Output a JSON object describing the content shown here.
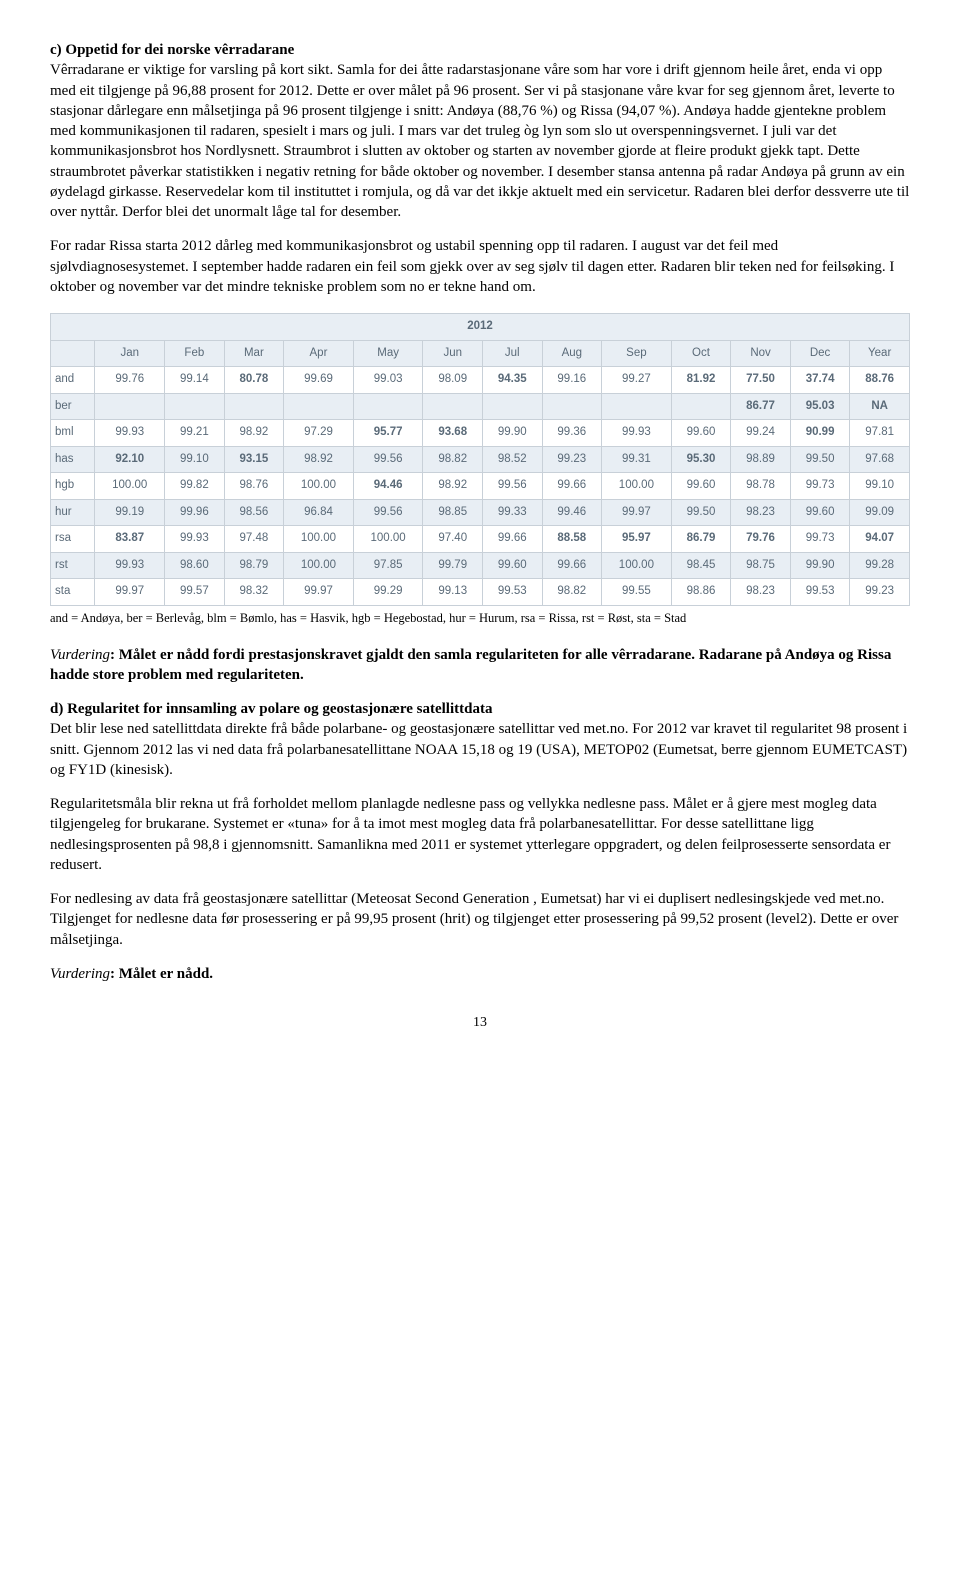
{
  "sectionC": {
    "title": "c) Oppetid for dei norske vêrradarane",
    "para1": "Vêrradarane er viktige for varsling på kort sikt. Samla for dei åtte radarstasjonane våre som har vore i drift gjennom heile året, enda vi opp med eit tilgjenge på 96,88 prosent for 2012. Dette er over målet på 96 prosent. Ser vi på stasjonane våre kvar for seg gjennom året, leverte to stasjonar dårlegare enn målsetjinga på 96 prosent tilgjenge i snitt: Andøya (88,76 %) og Rissa (94,07 %). Andøya hadde gjentekne problem med kommunikasjonen til radaren, spesielt i mars og juli. I mars var det truleg òg lyn som slo ut overspenningsvernet. I juli var det kommunikasjonsbrot hos Nordlysnett. Straumbrot i slutten av oktober og starten av november gjorde at fleire produkt gjekk tapt. Dette straumbrotet påverkar statistikken i negativ retning for både oktober og november. I desember stansa antenna på radar Andøya på grunn av ein øydelagd girkasse. Reservedelar kom til instituttet i romjula, og då var det ikkje aktuelt med ein servicetur. Radaren blei derfor dessverre ute til over nyttår. Derfor blei det unormalt låge tal for desember.",
    "para2": "For radar Rissa starta 2012 dårleg med kommunikasjonsbrot og ustabil spenning opp til radaren. I august var det feil med sjølvdiagnosesystemet. I september hadde radaren ein feil som gjekk over av seg sjølv til dagen etter. Radaren blir teken ned for feilsøking. I oktober og november var det mindre tekniske problem som no er tekne hand om."
  },
  "table": {
    "yearHeader": "2012",
    "columns": [
      "",
      "Jan",
      "Feb",
      "Mar",
      "Apr",
      "May",
      "Jun",
      "Jul",
      "Aug",
      "Sep",
      "Oct",
      "Nov",
      "Dec",
      "Year"
    ],
    "rows": [
      {
        "label": "and",
        "shade": false,
        "cells": [
          {
            "v": "99.76"
          },
          {
            "v": "99.14"
          },
          {
            "v": "80.78",
            "b": true
          },
          {
            "v": "99.69"
          },
          {
            "v": "99.03"
          },
          {
            "v": "98.09"
          },
          {
            "v": "94.35",
            "b": true
          },
          {
            "v": "99.16"
          },
          {
            "v": "99.27"
          },
          {
            "v": "81.92",
            "b": true
          },
          {
            "v": "77.50",
            "b": true
          },
          {
            "v": "37.74",
            "b": true
          },
          {
            "v": "88.76",
            "b": true
          }
        ]
      },
      {
        "label": "ber",
        "shade": true,
        "cells": [
          {
            "v": ""
          },
          {
            "v": ""
          },
          {
            "v": ""
          },
          {
            "v": ""
          },
          {
            "v": ""
          },
          {
            "v": ""
          },
          {
            "v": ""
          },
          {
            "v": ""
          },
          {
            "v": ""
          },
          {
            "v": ""
          },
          {
            "v": "86.77",
            "b": true
          },
          {
            "v": "95.03",
            "b": true
          },
          {
            "v": "NA",
            "b": true
          }
        ]
      },
      {
        "label": "bml",
        "shade": false,
        "cells": [
          {
            "v": "99.93"
          },
          {
            "v": "99.21"
          },
          {
            "v": "98.92"
          },
          {
            "v": "97.29"
          },
          {
            "v": "95.77",
            "b": true
          },
          {
            "v": "93.68",
            "b": true
          },
          {
            "v": "99.90"
          },
          {
            "v": "99.36"
          },
          {
            "v": "99.93"
          },
          {
            "v": "99.60"
          },
          {
            "v": "99.24"
          },
          {
            "v": "90.99",
            "b": true
          },
          {
            "v": "97.81"
          }
        ]
      },
      {
        "label": "has",
        "shade": true,
        "cells": [
          {
            "v": "92.10",
            "b": true
          },
          {
            "v": "99.10"
          },
          {
            "v": "93.15",
            "b": true
          },
          {
            "v": "98.92"
          },
          {
            "v": "99.56"
          },
          {
            "v": "98.82"
          },
          {
            "v": "98.52"
          },
          {
            "v": "99.23"
          },
          {
            "v": "99.31"
          },
          {
            "v": "95.30",
            "b": true
          },
          {
            "v": "98.89"
          },
          {
            "v": "99.50"
          },
          {
            "v": "97.68"
          }
        ]
      },
      {
        "label": "hgb",
        "shade": false,
        "cells": [
          {
            "v": "100.00"
          },
          {
            "v": "99.82"
          },
          {
            "v": "98.76"
          },
          {
            "v": "100.00"
          },
          {
            "v": "94.46",
            "b": true
          },
          {
            "v": "98.92"
          },
          {
            "v": "99.56"
          },
          {
            "v": "99.66"
          },
          {
            "v": "100.00"
          },
          {
            "v": "99.60"
          },
          {
            "v": "98.78"
          },
          {
            "v": "99.73"
          },
          {
            "v": "99.10"
          }
        ]
      },
      {
        "label": "hur",
        "shade": true,
        "cells": [
          {
            "v": "99.19"
          },
          {
            "v": "99.96"
          },
          {
            "v": "98.56"
          },
          {
            "v": "96.84"
          },
          {
            "v": "99.56"
          },
          {
            "v": "98.85"
          },
          {
            "v": "99.33"
          },
          {
            "v": "99.46"
          },
          {
            "v": "99.97"
          },
          {
            "v": "99.50"
          },
          {
            "v": "98.23"
          },
          {
            "v": "99.60"
          },
          {
            "v": "99.09"
          }
        ]
      },
      {
        "label": "rsa",
        "shade": false,
        "cells": [
          {
            "v": "83.87",
            "b": true
          },
          {
            "v": "99.93"
          },
          {
            "v": "97.48"
          },
          {
            "v": "100.00"
          },
          {
            "v": "100.00"
          },
          {
            "v": "97.40"
          },
          {
            "v": "99.66"
          },
          {
            "v": "88.58",
            "b": true
          },
          {
            "v": "95.97",
            "b": true
          },
          {
            "v": "86.79",
            "b": true
          },
          {
            "v": "79.76",
            "b": true
          },
          {
            "v": "99.73"
          },
          {
            "v": "94.07",
            "b": true
          }
        ]
      },
      {
        "label": "rst",
        "shade": true,
        "cells": [
          {
            "v": "99.93"
          },
          {
            "v": "98.60"
          },
          {
            "v": "98.79"
          },
          {
            "v": "100.00"
          },
          {
            "v": "97.85"
          },
          {
            "v": "99.79"
          },
          {
            "v": "99.60"
          },
          {
            "v": "99.66"
          },
          {
            "v": "100.00"
          },
          {
            "v": "98.45"
          },
          {
            "v": "98.75"
          },
          {
            "v": "99.90"
          },
          {
            "v": "99.28"
          }
        ]
      },
      {
        "label": "sta",
        "shade": false,
        "cells": [
          {
            "v": "99.97"
          },
          {
            "v": "99.57"
          },
          {
            "v": "98.32"
          },
          {
            "v": "99.97"
          },
          {
            "v": "99.29"
          },
          {
            "v": "99.13"
          },
          {
            "v": "99.53"
          },
          {
            "v": "98.82"
          },
          {
            "v": "99.55"
          },
          {
            "v": "98.86"
          },
          {
            "v": "98.23"
          },
          {
            "v": "99.53"
          },
          {
            "v": "99.23"
          }
        ]
      }
    ]
  },
  "legend": "and = Andøya, ber = Berlevåg, blm = Bømlo, has = Hasvik, hgb = Hegebostad, hur = Hurum, rsa = Rissa, rst = Røst, sta = Stad",
  "vurderingC": {
    "label": "Vurdering",
    "text": ": Målet er nådd fordi prestasjonskravet gjaldt den samla regulariteten for alle vêrradarane. Radarane på Andøya og Rissa hadde store problem med regulariteten."
  },
  "sectionD": {
    "title": "d) Regularitet for innsamling av polare og geostasjonære satellittdata",
    "para1": "Det blir lese ned satellittdata direkte frå både polarbane- og geostasjonære satellittar ved met.no. For 2012 var kravet til regularitet 98 prosent i snitt. Gjennom 2012 las vi ned data frå polarbanesatellittane NOAA 15,18 og 19 (USA), METOP02 (Eumetsat, berre gjennom EUMETCAST) og FY1D (kinesisk).",
    "para2": "Regularitetsmåla blir rekna ut frå forholdet mellom planlagde nedlesne pass og vellykka nedlesne pass. Målet er å gjere mest mogleg data tilgjengeleg for brukarane. Systemet er «tuna» for å ta imot mest mogleg data frå polarbanesatellittar. For desse satellittane ligg nedlesingsprosenten på 98,8 i gjennomsnitt. Samanlikna med 2011 er systemet ytterlegare oppgradert, og delen feilprosesserte sensordata er redusert.",
    "para3": "For nedlesing av data frå geostasjonære satellittar (Meteosat Second Generation , Eumetsat) har vi ei duplisert nedlesingskjede ved met.no. Tilgjenget for nedlesne data før prosessering er på 99,95 prosent (hrit) og tilgjenget etter prosessering på 99,52 prosent (level2). Dette er over målsetjinga."
  },
  "vurderingD": {
    "label": "Vurdering",
    "text": ": Målet er nådd."
  },
  "pageNumber": "13"
}
